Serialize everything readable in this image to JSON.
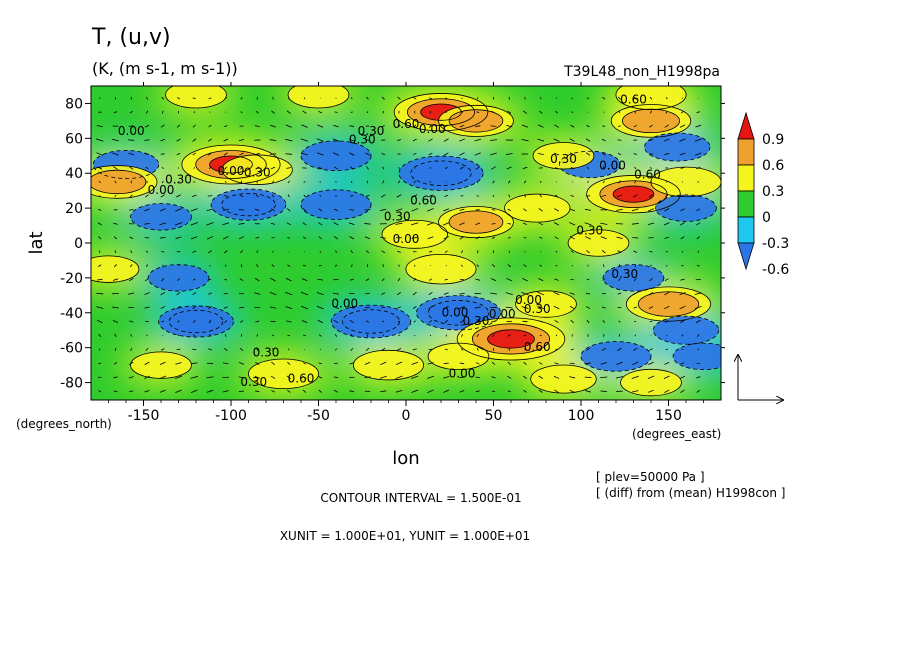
{
  "figure": {
    "title": "T, (u,v)",
    "units": "(K, (m s-1, m s-1))",
    "run_name": "T39L48_non_H1998pa",
    "contour_interval": "CONTOUR INTERVAL = 1.500E-01",
    "vector_units": "XUNIT = 1.000E+01, YUNIT = 1.000E+01",
    "level": "[ plev=50000 Pa ]",
    "diff_note": "[ (diff) from (mean) H1998con ]"
  },
  "chart_data": {
    "type": "heatmap",
    "title": "T, (u,v)",
    "xlabel": "lon",
    "ylabel": "lat",
    "x_unit_label": "(degrees_east)",
    "y_unit_label": "(degrees_north)",
    "xlim": [
      -180,
      180
    ],
    "ylim": [
      -90,
      90
    ],
    "x_ticks": [
      -150,
      -100,
      -50,
      0,
      50,
      100,
      150
    ],
    "y_ticks": [
      -80,
      -60,
      -40,
      -20,
      0,
      20,
      40,
      60,
      80
    ],
    "x_tick_labels": [
      "-150",
      "-100",
      "-50",
      "0",
      "50",
      "100",
      "150"
    ],
    "y_tick_labels": [
      "-80",
      "-60",
      "-40",
      "-20",
      "0",
      "20",
      "40",
      "60",
      "80"
    ],
    "colorbar": {
      "levels": [
        -0.6,
        -0.3,
        0,
        0.3,
        0.6,
        0.9
      ],
      "labels": [
        "-0.6",
        "-0.3",
        "0",
        "0.3",
        "0.6",
        "0.9"
      ],
      "colors": [
        "#2b76e6",
        "#1ec8f0",
        "#2ecc2e",
        "#f5f51e",
        "#f0a030",
        "#e61414"
      ]
    },
    "field_colors": {
      "below_-0.6": "#2b76e6",
      "-0.6_to_-0.3": "#2b76e6",
      "-0.3_to_0": "#1ec8f0",
      "0_to_0.3": "#2ecc2e",
      "0.3_to_0.6": "#f5f51e",
      "0.6_to_0.9": "#f0a030",
      "above_0.9": "#e61414"
    },
    "anomalies": [
      {
        "lon": 20,
        "lat": 75,
        "value": 1.0
      },
      {
        "lon": 40,
        "lat": 70,
        "value": 0.6
      },
      {
        "lon": 140,
        "lat": 70,
        "value": 0.7
      },
      {
        "lon": 140,
        "lat": 85,
        "value": 0.5
      },
      {
        "lon": -120,
        "lat": 85,
        "value": 0.3
      },
      {
        "lon": -50,
        "lat": 85,
        "value": 0.3
      },
      {
        "lon": -160,
        "lat": 45,
        "value": -0.4
      },
      {
        "lon": -40,
        "lat": 50,
        "value": -0.5
      },
      {
        "lon": 20,
        "lat": 40,
        "value": -0.8
      },
      {
        "lon": 155,
        "lat": 55,
        "value": -0.4
      },
      {
        "lon": 105,
        "lat": 45,
        "value": -0.3
      },
      {
        "lon": -100,
        "lat": 45,
        "value": 1.1
      },
      {
        "lon": -85,
        "lat": 42,
        "value": 0.5
      },
      {
        "lon": -165,
        "lat": 35,
        "value": 0.7
      },
      {
        "lon": 130,
        "lat": 28,
        "value": 1.0
      },
      {
        "lon": 160,
        "lat": 35,
        "value": 0.5
      },
      {
        "lon": 90,
        "lat": 50,
        "value": 0.3
      },
      {
        "lon": -90,
        "lat": 22,
        "value": -0.6
      },
      {
        "lon": -40,
        "lat": 22,
        "value": -0.5
      },
      {
        "lon": -140,
        "lat": 15,
        "value": -0.3
      },
      {
        "lon": 160,
        "lat": 20,
        "value": -0.3
      },
      {
        "lon": 40,
        "lat": 12,
        "value": 0.6
      },
      {
        "lon": 5,
        "lat": 5,
        "value": 0.4
      },
      {
        "lon": 75,
        "lat": 20,
        "value": 0.4
      },
      {
        "lon": 110,
        "lat": 0,
        "value": 0.3
      },
      {
        "lon": 20,
        "lat": -15,
        "value": 0.5
      },
      {
        "lon": -170,
        "lat": -15,
        "value": 0.3
      },
      {
        "lon": -130,
        "lat": -20,
        "value": -0.3
      },
      {
        "lon": 130,
        "lat": -20,
        "value": -0.3
      },
      {
        "lon": 80,
        "lat": -35,
        "value": 0.3
      },
      {
        "lon": 150,
        "lat": -35,
        "value": 0.8
      },
      {
        "lon": 30,
        "lat": -40,
        "value": -0.8
      },
      {
        "lon": -20,
        "lat": -45,
        "value": -0.7
      },
      {
        "lon": -120,
        "lat": -45,
        "value": -0.6
      },
      {
        "lon": 160,
        "lat": -50,
        "value": -0.4
      },
      {
        "lon": 60,
        "lat": -55,
        "value": 1.3
      },
      {
        "lon": 120,
        "lat": -65,
        "value": -0.5
      },
      {
        "lon": 170,
        "lat": -65,
        "value": -0.3
      },
      {
        "lon": 30,
        "lat": -65,
        "value": 0.3
      },
      {
        "lon": -70,
        "lat": -75,
        "value": 0.5
      },
      {
        "lon": -140,
        "lat": -70,
        "value": 0.3
      },
      {
        "lon": -10,
        "lat": -70,
        "value": 0.5
      },
      {
        "lon": 90,
        "lat": -78,
        "value": 0.4
      },
      {
        "lon": 140,
        "lat": -80,
        "value": 0.3
      }
    ],
    "contour_labels": [
      {
        "text": "0.00",
        "lon": -157,
        "lat": 62
      },
      {
        "text": "0.00",
        "lon": 15,
        "lat": 63
      },
      {
        "text": "0.30",
        "lon": -20,
        "lat": 62
      },
      {
        "text": "0.30",
        "lon": -25,
        "lat": 57
      },
      {
        "text": "0.60",
        "lon": 0,
        "lat": 66
      },
      {
        "text": "0.60",
        "lon": 130,
        "lat": 80
      },
      {
        "text": "0.00",
        "lon": -100,
        "lat": 39
      },
      {
        "text": "0.30",
        "lon": -85,
        "lat": 38
      },
      {
        "text": "0.30",
        "lon": -130,
        "lat": 34
      },
      {
        "text": "0.00",
        "lon": -140,
        "lat": 28
      },
      {
        "text": "0.30",
        "lon": 90,
        "lat": 46
      },
      {
        "text": "0.00",
        "lon": 118,
        "lat": 42
      },
      {
        "text": "0.60",
        "lon": 138,
        "lat": 37
      },
      {
        "text": "0.60",
        "lon": 10,
        "lat": 22
      },
      {
        "text": "0.30",
        "lon": -5,
        "lat": 13
      },
      {
        "text": "0.00",
        "lon": 0,
        "lat": 0
      },
      {
        "text": "0.30",
        "lon": 105,
        "lat": 5
      },
      {
        "text": "0.30",
        "lon": 125,
        "lat": -20
      },
      {
        "text": "0.00",
        "lon": -35,
        "lat": -37
      },
      {
        "text": "0.00",
        "lon": 28,
        "lat": -42
      },
      {
        "text": "0.00",
        "lon": 70,
        "lat": -35
      },
      {
        "text": "0.00",
        "lon": 55,
        "lat": -43
      },
      {
        "text": "0.30",
        "lon": 75,
        "lat": -40
      },
      {
        "text": "0.30",
        "lon": 40,
        "lat": -47
      },
      {
        "text": "0.60",
        "lon": 75,
        "lat": -62
      },
      {
        "text": "0.30",
        "lon": -80,
        "lat": -65
      },
      {
        "text": "0.00",
        "lon": 32,
        "lat": -77
      },
      {
        "text": "0.60",
        "lon": -60,
        "lat": -80
      },
      {
        "text": "0.30",
        "lon": -87,
        "lat": -82
      }
    ]
  }
}
